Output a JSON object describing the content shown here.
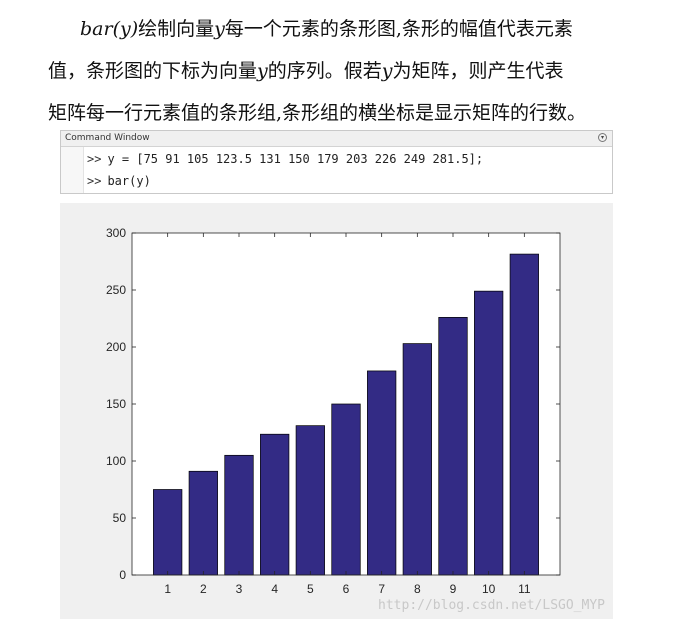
{
  "paragraph": {
    "line1_math": "bar(y)",
    "line1_a": "绘制向量",
    "line1_var": "y",
    "line1_b": "每一个元素的条形图,条形的幅值代表元素",
    "line2_a": "值，条形图的下标为向量",
    "line2_var": "y",
    "line2_b": "的序列。假若",
    "line2_var2": "y",
    "line2_c": "为矩阵，则产生代表",
    "line3": "矩阵每一行元素值的条形组,条形组的横坐标是显示矩阵的行数。"
  },
  "command_window": {
    "title": "Command Window",
    "menu_icon": "chevron-circle-icon",
    "prompt": ">>",
    "lines": [
      "y = [75 91 105 123.5 131 150 179 203 226 249 281.5];",
      "bar(y)"
    ]
  },
  "chart_data": {
    "type": "bar",
    "categories": [
      "1",
      "2",
      "3",
      "4",
      "5",
      "6",
      "7",
      "8",
      "9",
      "10",
      "11"
    ],
    "values": [
      75,
      91,
      105,
      123.5,
      131,
      150,
      179,
      203,
      226,
      249,
      281.5
    ],
    "ylim": [
      0,
      300
    ],
    "yticks": [
      0,
      50,
      100,
      150,
      200,
      250,
      300
    ],
    "bar_color": "#332b85",
    "grid": false
  },
  "watermark": "http://blog.csdn.net/LSGO_MYP"
}
